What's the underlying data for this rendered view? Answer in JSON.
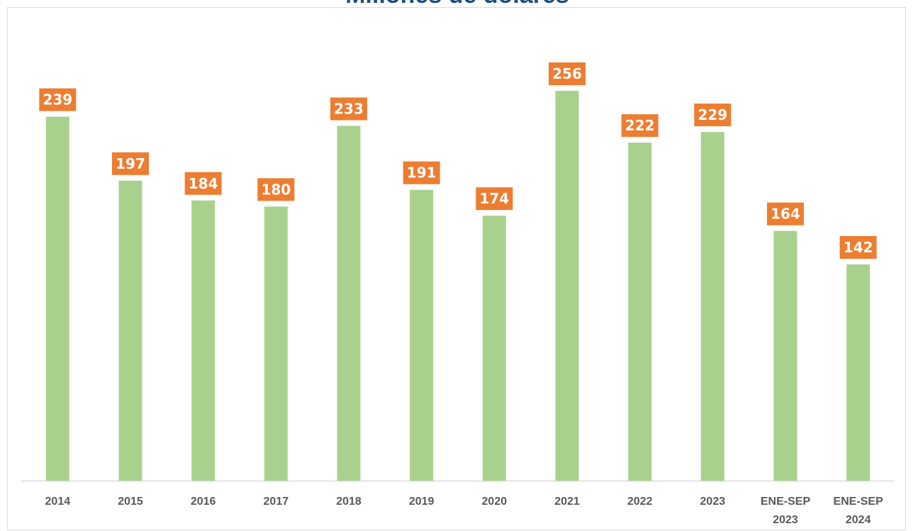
{
  "chart_data": {
    "type": "bar",
    "title": "Millones de dólares",
    "categories": [
      "2014",
      "2015",
      "2016",
      "2017",
      "2018",
      "2019",
      "2020",
      "2021",
      "2022",
      "2023",
      "ENE-SEP 2023",
      "ENE-SEP 2024"
    ],
    "values": [
      239,
      197,
      184,
      180,
      233,
      191,
      174,
      256,
      222,
      229,
      164,
      142
    ],
    "color": "#a9d18e",
    "label_color": "#ed7d31",
    "grid": false
  }
}
